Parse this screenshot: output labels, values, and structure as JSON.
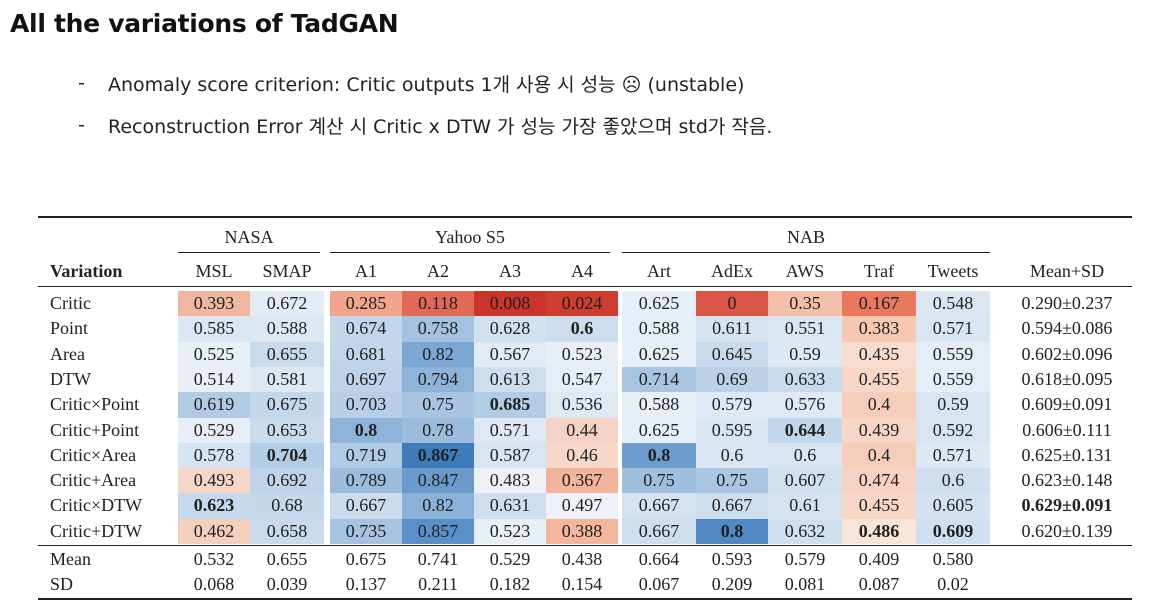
{
  "title": "All the variations of TadGAN",
  "bullets": [
    {
      "dash": "-",
      "text": "Anomaly score criterion: Critic outputs 1개 사용 시 성능 ☹ (unstable)"
    },
    {
      "dash": "-",
      "text": "Reconstruction Error 계산 시 Critic x DTW 가 성능 가장 좋았으며 std가 작음."
    }
  ],
  "table": {
    "groups": [
      "NASA",
      "Yahoo S5",
      "NAB"
    ],
    "columns": [
      "Variation",
      "MSL",
      "SMAP",
      "A1",
      "A2",
      "A3",
      "A4",
      "Art",
      "AdEx",
      "AWS",
      "Traf",
      "Tweets",
      "Mean+SD"
    ],
    "rows": [
      {
        "label": "Critic",
        "values": [
          "0.393",
          "0.672",
          "0.285",
          "0.118",
          "0.008",
          "0.024",
          "0.625",
          "0",
          "0.35",
          "0.167",
          "0.548"
        ],
        "mean_sd": "0.290±0.237",
        "bold": [],
        "bold_mean": false
      },
      {
        "label": "Point",
        "values": [
          "0.585",
          "0.588",
          "0.674",
          "0.758",
          "0.628",
          "0.6",
          "0.588",
          "0.611",
          "0.551",
          "0.383",
          "0.571"
        ],
        "mean_sd": "0.594±0.086",
        "bold": [
          5
        ],
        "bold_mean": false
      },
      {
        "label": "Area",
        "values": [
          "0.525",
          "0.655",
          "0.681",
          "0.82",
          "0.567",
          "0.523",
          "0.625",
          "0.645",
          "0.59",
          "0.435",
          "0.559"
        ],
        "mean_sd": "0.602±0.096",
        "bold": [],
        "bold_mean": false
      },
      {
        "label": "DTW",
        "values": [
          "0.514",
          "0.581",
          "0.697",
          "0.794",
          "0.613",
          "0.547",
          "0.714",
          "0.69",
          "0.633",
          "0.455",
          "0.559"
        ],
        "mean_sd": "0.618±0.095",
        "bold": [],
        "bold_mean": false
      },
      {
        "label": "Critic×Point",
        "values": [
          "0.619",
          "0.675",
          "0.703",
          "0.75",
          "0.685",
          "0.536",
          "0.588",
          "0.579",
          "0.576",
          "0.4",
          "0.59"
        ],
        "mean_sd": "0.609±0.091",
        "bold": [
          4
        ],
        "bold_mean": false
      },
      {
        "label": "Critic+Point",
        "values": [
          "0.529",
          "0.653",
          "0.8",
          "0.78",
          "0.571",
          "0.44",
          "0.625",
          "0.595",
          "0.644",
          "0.439",
          "0.592"
        ],
        "mean_sd": "0.606±0.111",
        "bold": [
          2,
          8
        ],
        "bold_mean": false
      },
      {
        "label": "Critic×Area",
        "values": [
          "0.578",
          "0.704",
          "0.719",
          "0.867",
          "0.587",
          "0.46",
          "0.8",
          "0.6",
          "0.6",
          "0.4",
          "0.571"
        ],
        "mean_sd": "0.625±0.131",
        "bold": [
          1,
          3,
          6
        ],
        "bold_mean": false
      },
      {
        "label": "Critic+Area",
        "values": [
          "0.493",
          "0.692",
          "0.789",
          "0.847",
          "0.483",
          "0.367",
          "0.75",
          "0.75",
          "0.607",
          "0.474",
          "0.6"
        ],
        "mean_sd": "0.623±0.148",
        "bold": [],
        "bold_mean": false
      },
      {
        "label": "Critic×DTW",
        "values": [
          "0.623",
          "0.68",
          "0.667",
          "0.82",
          "0.631",
          "0.497",
          "0.667",
          "0.667",
          "0.61",
          "0.455",
          "0.605"
        ],
        "mean_sd": "0.629±0.091",
        "bold": [
          0
        ],
        "bold_mean": true
      },
      {
        "label": "Critic+DTW",
        "values": [
          "0.462",
          "0.658",
          "0.735",
          "0.857",
          "0.523",
          "0.388",
          "0.667",
          "0.8",
          "0.632",
          "0.486",
          "0.609"
        ],
        "mean_sd": "0.620±0.139",
        "bold": [
          7,
          9,
          10
        ],
        "bold_mean": false
      }
    ],
    "summary": [
      {
        "label": "Mean",
        "values": [
          "0.532",
          "0.655",
          "0.675",
          "0.741",
          "0.529",
          "0.438",
          "0.664",
          "0.593",
          "0.579",
          "0.409",
          "0.580"
        ]
      },
      {
        "label": "SD",
        "values": [
          "0.068",
          "0.039",
          "0.137",
          "0.211",
          "0.182",
          "0.154",
          "0.067",
          "0.209",
          "0.081",
          "0.087",
          "0.02"
        ]
      }
    ],
    "heat_colors": [
      [
        "#f0b7a0",
        "#e3ecf6",
        "#f2a58c",
        "#e06a55",
        "#c9352a",
        "#cd3d30",
        "#e6eef7",
        "#d95545",
        "#f4c0a9",
        "#e9785f",
        "#dbe6f2"
      ],
      [
        "#dce7f3",
        "#dde8f3",
        "#c2d7eb",
        "#a4c2e0",
        "#d2e1f0",
        "#cddcee",
        "#e6eef7",
        "#d7e3f1",
        "#dbe6f2",
        "#f6c7b1",
        "#dae5f2"
      ],
      [
        "#e8eff7",
        "#c8daec",
        "#c0d6ea",
        "#7aa7d3",
        "#e1eaf5",
        "#e8eff7",
        "#e6eef7",
        "#c8daec",
        "#dde8f3",
        "#f8dccd",
        "#e4ecf6"
      ],
      [
        "#e9eff7",
        "#dde8f3",
        "#bcd3e9",
        "#8db3d9",
        "#cfdeef",
        "#e5edf6",
        "#a8c6e2",
        "#bad1e8",
        "#c8dbed",
        "#f7d8c7",
        "#e4ecf6"
      ],
      [
        "#b1cbe5",
        "#c4d8ec",
        "#b8cfe7",
        "#a9c4e2",
        "#b2cce5",
        "#dfe8f3",
        "#e8eff7",
        "#dfe8f4",
        "#dfe8f4",
        "#f5cdb9",
        "#d8e4f2"
      ],
      [
        "#e6eef7",
        "#c9dbed",
        "#8fb4da",
        "#9bbcdd",
        "#dfe8f4",
        "#f5d3c4",
        "#e6eef7",
        "#dae5f2",
        "#c2d7eb",
        "#f7d6c6",
        "#d8e4f2"
      ],
      [
        "#d6e3f1",
        "#b3cde6",
        "#b0cbe5",
        "#3e7bbb",
        "#d8e4f2",
        "#f6d8c9",
        "#6c9dcd",
        "#d9e5f2",
        "#d9e5f2",
        "#f5cdb9",
        "#dde8f3"
      ],
      [
        "#f5d6c8",
        "#bfd4ea",
        "#9cbcde",
        "#6a9acc",
        "#eef2f8",
        "#f2b49a",
        "#a0bfdf",
        "#aac6e2",
        "#d2e1f0",
        "#f7d2c1",
        "#d0dfef"
      ],
      [
        "#c6d9ec",
        "#c4d8ec",
        "#c9dbed",
        "#8ab1d7",
        "#d0dfef",
        "#eef2f8",
        "#d5e3f1",
        "#cfdeef",
        "#d5e3f1",
        "#f7d8c7",
        "#d3e1f0"
      ],
      [
        "#f4cfbd",
        "#c8daec",
        "#a6c3e1",
        "#5a8fc7",
        "#e8eff7",
        "#f2b69d",
        "#cfdeef",
        "#5289c3",
        "#d0dfef",
        "#f8e4d8",
        "#d0dfef"
      ]
    ]
  }
}
